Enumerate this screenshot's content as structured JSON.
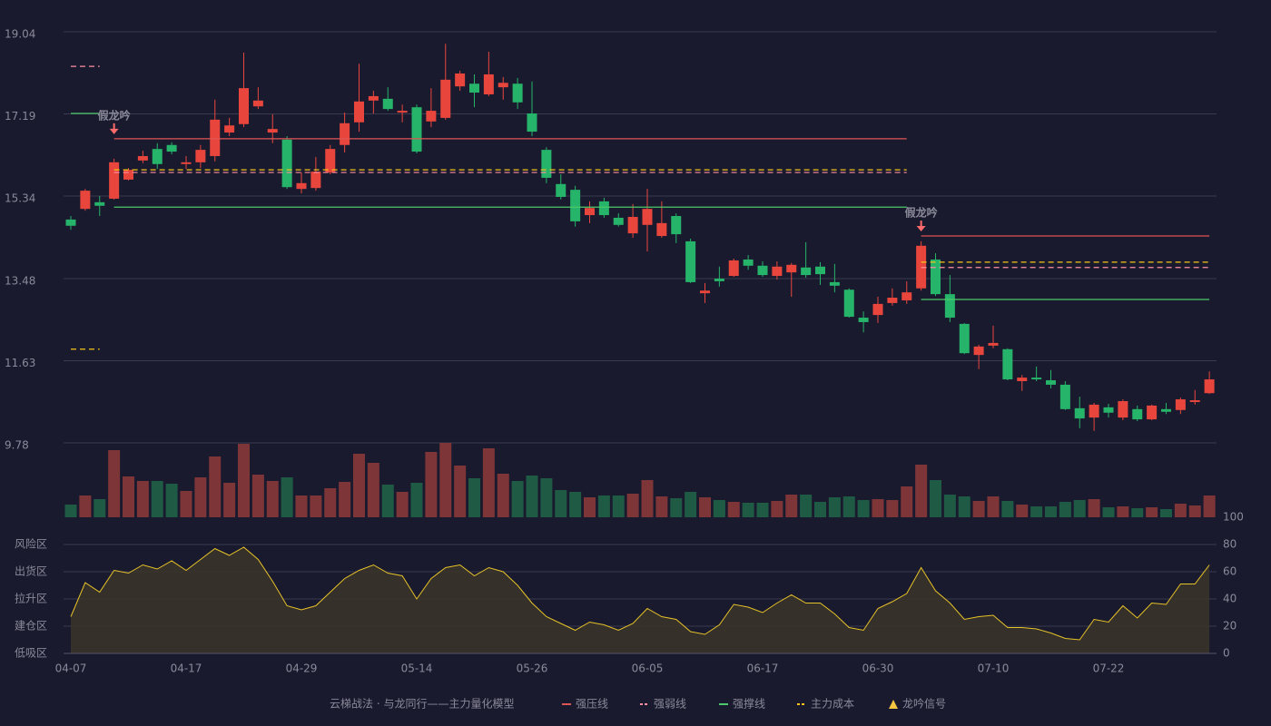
{
  "chart_data": {
    "type": "candlestick",
    "categories": [
      "04-07",
      null,
      null,
      null,
      null,
      null,
      null,
      null,
      "04-17",
      null,
      null,
      null,
      null,
      null,
      null,
      null,
      "04-29",
      null,
      null,
      null,
      null,
      null,
      null,
      null,
      "05-14",
      null,
      null,
      null,
      null,
      null,
      null,
      null,
      "05-26",
      null,
      null,
      null,
      null,
      null,
      null,
      null,
      "06-05",
      null,
      null,
      null,
      null,
      null,
      null,
      null,
      "06-17",
      null,
      null,
      null,
      null,
      null,
      null,
      null,
      "06-30",
      null,
      null,
      null,
      null,
      null,
      null,
      null,
      "07-10",
      null,
      null,
      null,
      null,
      null,
      null,
      null,
      "07-22",
      null,
      null,
      null,
      null,
      null,
      null,
      null
    ],
    "open": [
      14.81,
      15.05,
      15.2,
      15.28,
      15.71,
      16.14,
      16.4,
      16.49,
      16.06,
      16.1,
      16.24,
      16.77,
      16.96,
      17.36,
      16.77,
      16.61,
      15.5,
      15.52,
      15.87,
      16.49,
      17.0,
      17.49,
      17.53,
      17.22,
      17.34,
      17.02,
      17.1,
      17.81,
      17.87,
      17.63,
      17.79,
      17.87,
      17.2,
      16.38,
      15.61,
      15.48,
      14.91,
      15.22,
      14.85,
      14.5,
      14.69,
      14.44,
      14.89,
      14.32,
      13.15,
      13.48,
      13.54,
      13.91,
      13.77,
      13.54,
      13.62,
      13.73,
      13.75,
      13.4,
      13.23,
      12.6,
      12.66,
      12.93,
      12.99,
      13.26,
      13.91,
      13.13,
      12.46,
      11.76,
      11.97,
      11.89,
      11.17,
      11.25,
      11.19,
      11.09,
      10.56,
      10.35,
      10.58,
      10.35,
      10.54,
      10.31,
      10.54,
      10.52,
      10.7,
      10.9
    ],
    "high": [
      14.89,
      15.5,
      15.34,
      16.18,
      15.97,
      16.36,
      16.53,
      16.55,
      16.24,
      16.49,
      17.51,
      17.1,
      18.57,
      17.79,
      17.18,
      16.69,
      15.87,
      16.22,
      16.49,
      17.22,
      18.32,
      17.71,
      17.79,
      17.4,
      17.4,
      17.77,
      18.77,
      18.16,
      18.08,
      18.59,
      18.02,
      18.0,
      17.92,
      16.44,
      15.83,
      15.57,
      15.22,
      15.3,
      14.95,
      15.16,
      15.5,
      15.22,
      14.95,
      14.38,
      13.38,
      13.75,
      13.93,
      14.01,
      13.87,
      13.87,
      13.83,
      14.3,
      13.85,
      13.81,
      13.26,
      12.74,
      13.07,
      13.26,
      13.42,
      14.32,
      14.05,
      13.56,
      12.48,
      11.99,
      12.42,
      11.91,
      11.31,
      11.5,
      11.42,
      11.17,
      10.82,
      10.68,
      10.66,
      10.76,
      10.62,
      10.64,
      10.68,
      10.8,
      10.97,
      11.39
    ],
    "low": [
      14.58,
      15.01,
      14.89,
      15.26,
      15.69,
      16.08,
      15.95,
      16.28,
      15.95,
      15.97,
      16.12,
      16.69,
      16.89,
      17.3,
      16.53,
      15.5,
      15.4,
      15.46,
      15.83,
      16.32,
      16.79,
      17.2,
      17.26,
      17.0,
      16.3,
      16.89,
      17.06,
      17.71,
      17.34,
      17.59,
      17.51,
      17.3,
      16.69,
      15.63,
      15.26,
      14.65,
      14.73,
      14.85,
      14.65,
      14.4,
      14.09,
      14.4,
      14.28,
      13.38,
      12.93,
      13.3,
      13.52,
      13.68,
      13.52,
      13.46,
      13.07,
      13.5,
      13.34,
      13.17,
      12.6,
      12.27,
      12.48,
      12.87,
      12.91,
      13.21,
      13.09,
      12.5,
      11.78,
      11.44,
      11.91,
      11.19,
      10.95,
      11.17,
      11.01,
      10.52,
      10.11,
      10.05,
      10.35,
      10.29,
      10.27,
      10.29,
      10.43,
      10.43,
      10.64,
      10.88
    ],
    "close": [
      14.67,
      15.46,
      15.12,
      16.1,
      15.93,
      16.24,
      16.06,
      16.34,
      16.1,
      16.38,
      17.06,
      16.93,
      17.77,
      17.49,
      16.85,
      15.54,
      15.63,
      15.89,
      16.4,
      16.98,
      17.47,
      17.59,
      17.3,
      17.26,
      16.34,
      17.26,
      17.96,
      18.1,
      17.67,
      18.08,
      17.89,
      17.45,
      16.79,
      15.75,
      15.32,
      14.77,
      15.07,
      14.91,
      14.69,
      14.87,
      15.05,
      14.73,
      14.48,
      13.4,
      13.21,
      13.42,
      13.89,
      13.77,
      13.56,
      13.75,
      13.79,
      13.56,
      13.58,
      13.32,
      12.62,
      12.5,
      12.91,
      13.05,
      13.17,
      14.22,
      13.13,
      12.6,
      11.8,
      11.95,
      12.03,
      11.21,
      11.25,
      11.21,
      11.09,
      10.54,
      10.33,
      10.64,
      10.46,
      10.72,
      10.31,
      10.62,
      10.48,
      10.76,
      10.74,
      11.21
    ],
    "up_color": "#e8463c",
    "down_color": "#26b36a",
    "ylim": [
      9.78,
      19.04
    ],
    "yticks": [
      9.78,
      11.63,
      13.48,
      15.34,
      17.19,
      19.04
    ],
    "grid": true,
    "volume": {
      "values": [
        14,
        24,
        20,
        74,
        45,
        40,
        40,
        37,
        29,
        44,
        67,
        38,
        81,
        47,
        40,
        44,
        24,
        24,
        32,
        39,
        70,
        60,
        36,
        28,
        38,
        72,
        82,
        57,
        43,
        76,
        48,
        40,
        46,
        43,
        30,
        28,
        22,
        24,
        24,
        26,
        41,
        23,
        21,
        28,
        22,
        19,
        17,
        16,
        16,
        18,
        25,
        25,
        17,
        22,
        23,
        19,
        20,
        19,
        34,
        58,
        41,
        25,
        23,
        18,
        23,
        18,
        14,
        12,
        12,
        17,
        19,
        20,
        11,
        12,
        10,
        11,
        9,
        15,
        13,
        24
      ],
      "ylim": [
        0,
        82
      ],
      "up_color": "#7d3538",
      "down_color": "#1e5a44"
    },
    "levels": [
      {
        "name": "强压线",
        "color": "#e05555",
        "dashed": false,
        "values": [
          null,
          null,
          null,
          16.63,
          16.63,
          16.63,
          16.63,
          16.63,
          16.63,
          16.63,
          16.63,
          16.63,
          16.63,
          16.63,
          16.63,
          16.63,
          16.63,
          16.63,
          16.63,
          16.63,
          16.63,
          16.63,
          16.63,
          16.63,
          16.63,
          16.63,
          16.63,
          16.63,
          16.63,
          16.63,
          16.63,
          16.63,
          16.63,
          16.63,
          16.63,
          16.63,
          16.63,
          16.63,
          16.63,
          16.63,
          16.63,
          16.63,
          16.63,
          16.63,
          16.63,
          16.63,
          16.63,
          16.63,
          16.63,
          16.63,
          16.63,
          16.63,
          16.63,
          16.63,
          16.63,
          16.63,
          16.63,
          16.63,
          16.63,
          14.44,
          14.44,
          14.44,
          14.44,
          14.44,
          14.44,
          14.44,
          14.44,
          14.44,
          14.44,
          14.44,
          14.44,
          14.44,
          14.44,
          14.44,
          14.44,
          14.44,
          14.44,
          14.44,
          14.44,
          14.44
        ]
      },
      {
        "name": "强弱线",
        "color": "#ff8fa3",
        "dashed": true,
        "values": [
          18.26,
          18.26,
          18.26,
          15.87,
          15.87,
          15.87,
          15.87,
          15.87,
          15.87,
          15.87,
          15.87,
          15.87,
          15.87,
          15.87,
          15.87,
          15.87,
          15.87,
          15.87,
          15.87,
          15.87,
          15.87,
          15.87,
          15.87,
          15.87,
          15.87,
          15.87,
          15.87,
          15.87,
          15.87,
          15.87,
          15.87,
          15.87,
          15.87,
          15.87,
          15.87,
          15.87,
          15.87,
          15.87,
          15.87,
          15.87,
          15.87,
          15.87,
          15.87,
          15.87,
          15.87,
          15.87,
          15.87,
          15.87,
          15.87,
          15.87,
          15.87,
          15.87,
          15.87,
          15.87,
          15.87,
          15.87,
          15.87,
          15.87,
          15.87,
          13.73,
          13.73,
          13.73,
          13.73,
          13.73,
          13.73,
          13.73,
          13.73,
          13.73,
          13.73,
          13.73,
          13.73,
          13.73,
          13.73,
          13.73,
          13.73,
          13.73,
          13.73,
          13.73,
          13.73,
          13.73
        ]
      },
      {
        "name": "强撑线",
        "color": "#4cc96a",
        "dashed": false,
        "values": [
          17.2,
          17.2,
          17.2,
          15.09,
          15.09,
          15.09,
          15.09,
          15.09,
          15.09,
          15.09,
          15.09,
          15.09,
          15.09,
          15.09,
          15.09,
          15.09,
          15.09,
          15.09,
          15.09,
          15.09,
          15.09,
          15.09,
          15.09,
          15.09,
          15.09,
          15.09,
          15.09,
          15.09,
          15.09,
          15.09,
          15.09,
          15.09,
          15.09,
          15.09,
          15.09,
          15.09,
          15.09,
          15.09,
          15.09,
          15.09,
          15.09,
          15.09,
          15.09,
          15.09,
          15.09,
          15.09,
          15.09,
          15.09,
          15.09,
          15.09,
          15.09,
          15.09,
          15.09,
          15.09,
          15.09,
          15.09,
          15.09,
          15.09,
          15.09,
          13.01,
          13.01,
          13.01,
          13.01,
          13.01,
          13.01,
          13.01,
          13.01,
          13.01,
          13.01,
          13.01,
          13.01,
          13.01,
          13.01,
          13.01,
          13.01,
          13.01,
          13.01,
          13.01,
          13.01,
          13.01
        ]
      },
      {
        "name": "主力成本",
        "color": "#f5c518",
        "dashed": true,
        "values": [
          11.89,
          11.89,
          11.89,
          15.93,
          15.93,
          15.93,
          15.93,
          15.93,
          15.93,
          15.93,
          15.93,
          15.93,
          15.93,
          15.93,
          15.93,
          15.93,
          15.93,
          15.93,
          15.93,
          15.93,
          15.93,
          15.93,
          15.93,
          15.93,
          15.93,
          15.93,
          15.93,
          15.93,
          15.93,
          15.93,
          15.93,
          15.93,
          15.93,
          15.93,
          15.93,
          15.93,
          15.93,
          15.93,
          15.93,
          15.93,
          15.93,
          15.93,
          15.93,
          15.93,
          15.93,
          15.93,
          15.93,
          15.93,
          15.93,
          15.93,
          15.93,
          15.93,
          15.93,
          15.93,
          15.93,
          15.93,
          15.93,
          15.93,
          15.93,
          13.85,
          13.85,
          13.85,
          13.85,
          13.85,
          13.85,
          13.85,
          13.85,
          13.85,
          13.85,
          13.85,
          13.85,
          13.85,
          13.85,
          13.85,
          13.85,
          13.85,
          13.85,
          13.85,
          13.85,
          13.85
        ]
      }
    ],
    "signals": [
      {
        "index": 3,
        "label": "假龙吟"
      },
      {
        "index": 59,
        "label": "假龙吟"
      }
    ],
    "signal_color": "#ff6b6b",
    "signal_legend": {
      "name": "龙吟信号",
      "color": "#f5c542"
    },
    "legend_title": "云梯战法 · 与龙同行——主力量化模型",
    "legend_title_color": "#e8c872",
    "indicator": {
      "values": [
        27,
        52,
        45,
        61,
        59,
        65,
        62,
        68,
        61,
        69,
        77,
        72,
        78,
        69,
        53,
        35,
        32,
        35,
        45,
        55,
        61,
        65,
        59,
        57,
        40,
        55,
        63,
        65,
        57,
        63,
        60,
        50,
        37,
        27,
        22,
        17,
        23,
        21,
        17,
        22,
        33,
        27,
        25,
        16,
        14,
        21,
        36,
        34,
        30,
        37,
        43,
        37,
        37,
        29,
        19,
        17,
        33,
        38,
        44,
        63,
        46,
        37,
        25,
        27,
        28,
        19,
        19,
        18,
        15,
        11,
        10,
        25,
        23,
        35,
        26,
        37,
        36,
        51,
        51,
        65
      ],
      "color": "#e6c229",
      "fill": "#3b3528",
      "ylim": [
        0,
        100
      ],
      "yticks": [
        0,
        20,
        40,
        60,
        80,
        100
      ],
      "ytick_colors": [
        "#e8455a",
        "#e8555a",
        "#4a90e2",
        "#e040e0",
        "#e8a33a",
        "#4ade4a"
      ],
      "zones": [
        {
          "label": "风险区",
          "value": 80,
          "color": "#e8a33a"
        },
        {
          "label": "出货区",
          "value": 60,
          "color": "#e040e0"
        },
        {
          "label": "拉升区",
          "value": 40,
          "color": "#4a90e2"
        },
        {
          "label": "建仓区",
          "value": 20,
          "color": "#e8555a"
        },
        {
          "label": "低吸区",
          "value": 0,
          "color": "#e8455a"
        }
      ]
    }
  }
}
